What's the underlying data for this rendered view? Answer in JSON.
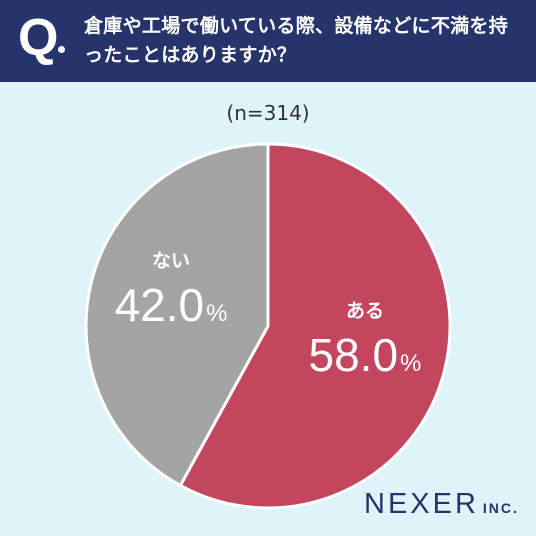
{
  "header": {
    "q_label": "Q",
    "question": "倉庫や工場で働いている際、設備などに不満を持ったことはありますか？"
  },
  "sample_size": "(n=314)",
  "chart_data": {
    "type": "pie",
    "slices": [
      {
        "label": "ある",
        "value": 58.0,
        "display": "58.0",
        "color": "#c2465e"
      },
      {
        "label": "ない",
        "value": 42.0,
        "display": "42.0",
        "color": "#a4a4a4"
      }
    ],
    "unit": "%"
  },
  "brand": {
    "name": "NEXER",
    "suffix": "INC."
  },
  "colors": {
    "header_bg": "#27346b",
    "page_bg": "#dff4f8",
    "label_text": "#ffffff"
  }
}
